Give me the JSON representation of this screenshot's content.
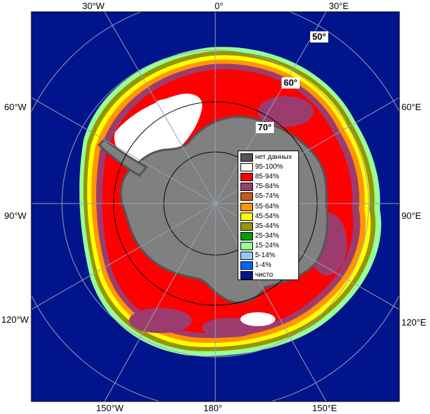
{
  "map": {
    "colors": {
      "ocean_open": "#00148c",
      "continent": "#808080",
      "no_data": "#555555",
      "grid": "#9aa0b8"
    },
    "longitude_labels": {
      "top_30w": "30°W",
      "top_0": "0°",
      "top_30e": "30°E",
      "left_60w": "60°W",
      "left_90w": "90°W",
      "left_120w": "120°W",
      "right_60e": "60°E",
      "right_90e": "90°E",
      "right_120e": "120°E",
      "bottom_150w": "150°W",
      "bottom_180": "180°",
      "bottom_150e": "150°E"
    },
    "latitude_labels": {
      "lat_50": "50°",
      "lat_60": "60°",
      "lat_70": "70°"
    }
  },
  "legend": {
    "items": [
      {
        "label": "нет данных",
        "color": "#555555"
      },
      {
        "label": "95-100%",
        "color": "#ffffff"
      },
      {
        "label": "85-94%",
        "color": "#ff0000"
      },
      {
        "label": "75-84%",
        "color": "#9c3c6e"
      },
      {
        "label": "65-74%",
        "color": "#c85a14"
      },
      {
        "label": "55-64%",
        "color": "#ff9600"
      },
      {
        "label": "45-54%",
        "color": "#ffff00"
      },
      {
        "label": "35-44%",
        "color": "#969600"
      },
      {
        "label": "25-34%",
        "color": "#00a000"
      },
      {
        "label": "15-24%",
        "color": "#96ff96"
      },
      {
        "label": "5-14%",
        "color": "#96c8ff"
      },
      {
        "label": "1-4%",
        "color": "#0064ff"
      },
      {
        "label": "чисто",
        "color": "#00148c"
      }
    ]
  }
}
